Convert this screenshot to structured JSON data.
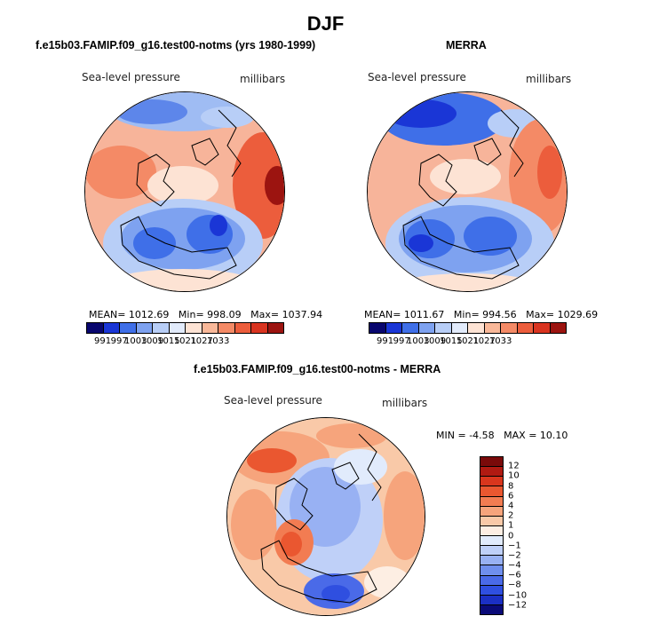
{
  "season": "DJF",
  "colors": {
    "abs_levels": [
      "#08066e",
      "#1a36d6",
      "#3f6fe8",
      "#7ea2f0",
      "#b8cef7",
      "#e2ebfb",
      "#fde3d4",
      "#f9b899",
      "#f48a66",
      "#ec5d3c",
      "#d93420",
      "#9c1410"
    ],
    "diff_levels": [
      "#0a0a78",
      "#1b2fc4",
      "#2f4fe0",
      "#4a6ae8",
      "#6f8fee",
      "#98b1f3",
      "#bfd0f8",
      "#e1ebfc",
      "#fdeee3",
      "#f9c9a8",
      "#f6a47c",
      "#f27c52",
      "#ea5730",
      "#d9361d",
      "#b01a12",
      "#7a0a0a"
    ]
  },
  "panel_left": {
    "title": "f.e15b03.FAMIP.f09_g16.test00-notms (yrs 1980-1999)",
    "variable": "Sea-level pressure",
    "units": "millibars",
    "mean_label": "MEAN=",
    "mean": "1012.69",
    "min_label": "Min=",
    "min": "998.09",
    "max_label": "Max=",
    "max": "1037.94",
    "ticks": [
      "991",
      "997",
      "1003",
      "1009",
      "1015",
      "1021",
      "1027",
      "1033"
    ]
  },
  "panel_right": {
    "title": "MERRA",
    "variable": "Sea-level pressure",
    "units": "millibars",
    "mean_label": "MEAN=",
    "mean": "1011.67",
    "min_label": "Min=",
    "min": "994.56",
    "max_label": "Max=",
    "max": "1029.69",
    "ticks": [
      "991",
      "997",
      "1003",
      "1009",
      "1015",
      "1021",
      "1027",
      "1033"
    ]
  },
  "panel_diff": {
    "title": "f.e15b03.FAMIP.f09_g16.test00-notms - MERRA",
    "variable": "Sea-level pressure",
    "units": "millibars",
    "min_label": "MIN =",
    "min": "-4.58",
    "max_label": "MAX =",
    "max": "10.10",
    "ticks": [
      "12",
      "10",
      "8",
      "6",
      "4",
      "2",
      "1",
      "0",
      "−1",
      "−2",
      "−4",
      "−6",
      "−8",
      "−10",
      "−12"
    ]
  }
}
